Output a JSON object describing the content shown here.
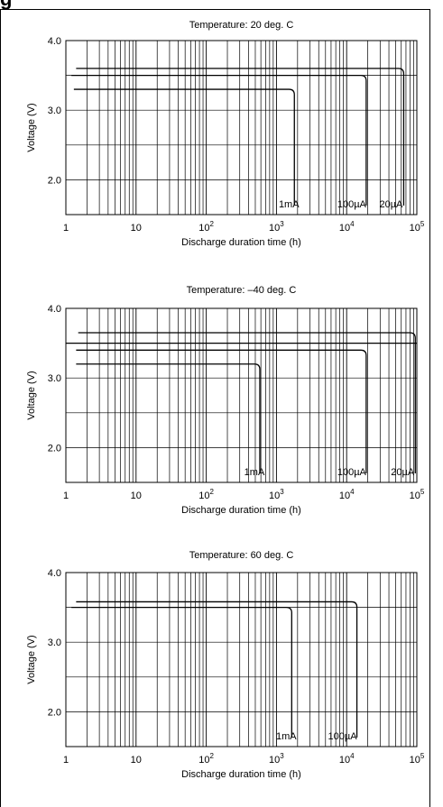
{
  "page_title": "g",
  "chart_data": [
    {
      "type": "line",
      "title": "Temperature: 20 deg. C",
      "xlabel": "Discharge duration time (h)",
      "ylabel": "Voltage (V)",
      "xscale": "log",
      "xlim": [
        1,
        100000
      ],
      "ylim": [
        1.5,
        4.0
      ],
      "grid": true,
      "x_ticks": [
        "1",
        "10",
        "10^2",
        "10^3",
        "10^4",
        "10^5"
      ],
      "y_ticks": [
        "2.0",
        "3.0",
        "4.0"
      ],
      "series": [
        {
          "name": "1mA",
          "start_x": 1.3,
          "voltage": 3.3,
          "end_x": 1800
        },
        {
          "name": "100µA",
          "start_x": 1.2,
          "voltage": 3.5,
          "end_x": 19000
        },
        {
          "name": "20µA",
          "start_x": 1.4,
          "voltage": 3.6,
          "end_x": 65000
        }
      ]
    },
    {
      "type": "line",
      "title": "Temperature: –40 deg. C",
      "xlabel": "Discharge duration time (h)",
      "ylabel": "Voltage (V)",
      "xscale": "log",
      "xlim": [
        1,
        100000
      ],
      "ylim": [
        1.5,
        4.0
      ],
      "grid": true,
      "x_ticks": [
        "1",
        "10",
        "10^2",
        "10^3",
        "10^4",
        "10^5"
      ],
      "y_ticks": [
        "2.0",
        "3.0",
        "4.0"
      ],
      "series": [
        {
          "name": "1mA",
          "start_x": 1.4,
          "voltage": 3.2,
          "end_x": 580
        },
        {
          "name": "100µA",
          "start_x": 1.4,
          "voltage": 3.4,
          "end_x": 19000
        },
        {
          "name": "20µA",
          "start_x": 1.5,
          "voltage": 3.65,
          "end_x": 95000
        }
      ],
      "extra_lines": [
        {
          "from_x": 1.0,
          "voltage": 3.5,
          "to_x": 100000
        }
      ]
    },
    {
      "type": "line",
      "title": "Temperature: 60 deg. C",
      "xlabel": "Discharge duration time (h)",
      "ylabel": "Voltage (V)",
      "xscale": "log",
      "xlim": [
        1,
        100000
      ],
      "ylim": [
        1.5,
        4.0
      ],
      "grid": true,
      "x_ticks": [
        "1",
        "10",
        "10^2",
        "10^3",
        "10^4",
        "10^5"
      ],
      "y_ticks": [
        "2.0",
        "3.0",
        "4.0"
      ],
      "series": [
        {
          "name": "1mA",
          "start_x": 1.2,
          "voltage": 3.5,
          "end_x": 1650
        },
        {
          "name": "100µA",
          "start_x": 1.4,
          "voltage": 3.58,
          "end_x": 14000
        }
      ]
    }
  ]
}
